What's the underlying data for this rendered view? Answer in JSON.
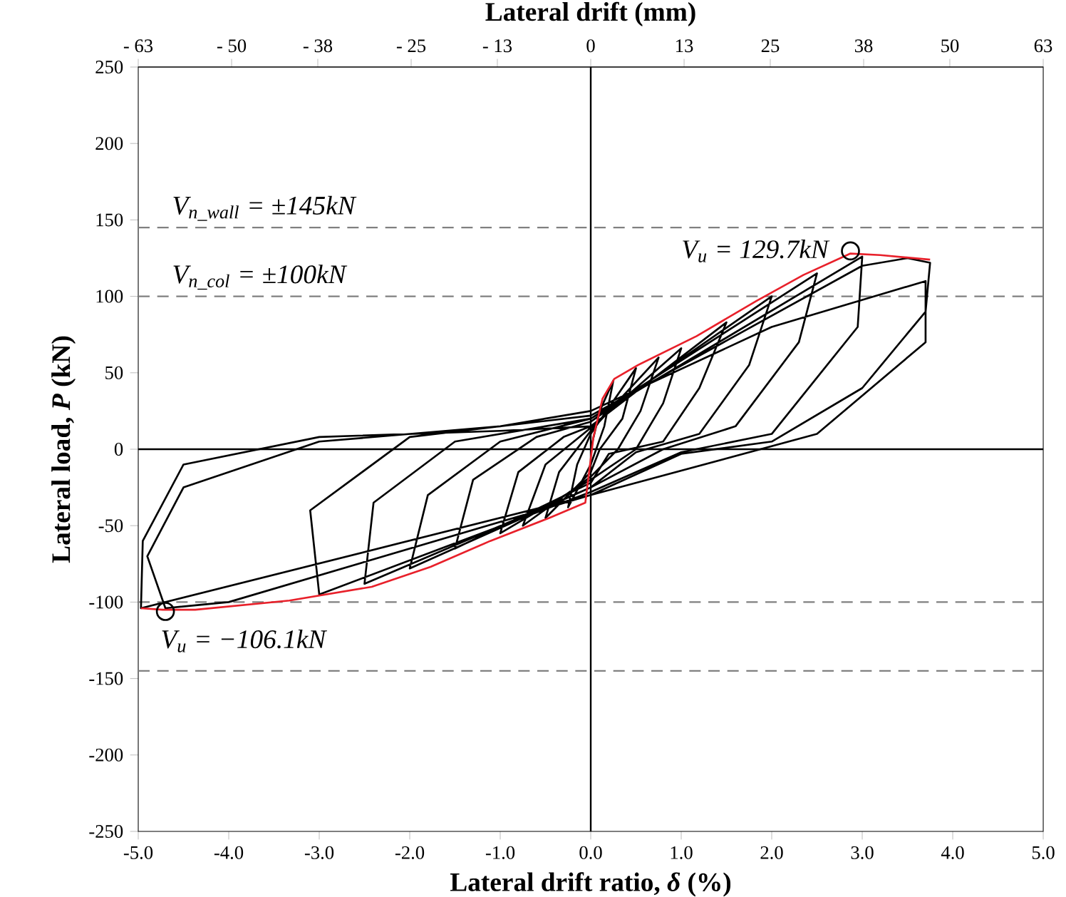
{
  "chart_data": {
    "type": "line",
    "xlabel": "Lateral drift ratio, *δ* (%)",
    "ylabel": "Lateral load, *P* (kN)",
    "x2label": "Lateral drift (mm)",
    "xlim": [
      -5,
      5
    ],
    "xticks": [
      {
        "value": -5,
        "label": "-5.0"
      },
      {
        "value": -4,
        "label": "-4.0"
      },
      {
        "value": -3,
        "label": "-3.0"
      },
      {
        "value": -2,
        "label": "-2.0"
      },
      {
        "value": -1,
        "label": "-1.0"
      },
      {
        "value": 0,
        "label": "0.0"
      },
      {
        "value": 1,
        "label": "1.0"
      },
      {
        "value": 2,
        "label": "2.0"
      },
      {
        "value": 3,
        "label": "3.0"
      },
      {
        "value": 4,
        "label": "4.0"
      },
      {
        "value": 5,
        "label": "5.0"
      }
    ],
    "x2lim": [
      -63,
      63
    ],
    "x2ticks": [
      {
        "value": -63,
        "label": "- 63"
      },
      {
        "value": -50,
        "label": "- 50"
      },
      {
        "value": -38,
        "label": "- 38"
      },
      {
        "value": -25,
        "label": "- 25"
      },
      {
        "value": -13,
        "label": "- 13"
      },
      0,
      13,
      25,
      38,
      50,
      63
    ],
    "ylim": [
      -250,
      250
    ],
    "yticks": [
      -250,
      -200,
      -150,
      -100,
      -50,
      0,
      50,
      100,
      150,
      200,
      250
    ],
    "ref_lines": [
      {
        "axis": "y",
        "value": 145,
        "label": "V$_{n_wall}$ = ±145kN",
        "color": "#808080",
        "line_style": "dashed"
      },
      {
        "axis": "y",
        "value": 100,
        "label": "V$_{n_col}$ = ±100kN",
        "color": "#808080",
        "line_style": "dashed"
      },
      {
        "axis": "y",
        "value": -100,
        "color": "#808080",
        "line_style": "dashed"
      },
      {
        "axis": "y",
        "value": -145,
        "color": "#808080",
        "line_style": "dashed"
      },
      {
        "axis": "y",
        "value": 0,
        "color": "#000000",
        "line_style": "solid"
      },
      {
        "axis": "x",
        "value": 0,
        "color": "#000000",
        "line_style": "solid"
      }
    ],
    "annotations": [
      {
        "text": "V$_{u}$ = 129.7kN",
        "x": 2.87,
        "y": 129.7
      },
      {
        "text": "V$_{u}$ = −106.1kN",
        "x": -4.7,
        "y": -106.1
      }
    ],
    "series": [
      {
        "color": "#000000",
        "line_style": "solid",
        "x": [
          0,
          0.1,
          0.25,
          0.15,
          0,
          -0.25,
          -0.15,
          0,
          0.5,
          0.35,
          0.1,
          0,
          -0.5,
          -0.35,
          0,
          0.75,
          0.55,
          0.3,
          0,
          -0.75,
          -0.5,
          0,
          1.0,
          0.8,
          0.5,
          0,
          -1.0,
          -0.8,
          -0.3,
          0,
          1.5,
          1.2,
          0.8,
          0.2,
          0,
          -1.5,
          -1.3,
          -0.6,
          0,
          2.0,
          1.75,
          1.2,
          0.5,
          0,
          -2.0,
          -1.8,
          -1.0,
          0,
          2.5,
          2.3,
          1.6,
          0.8,
          0,
          -2.5,
          -2.4,
          -1.5,
          0,
          3.0,
          2.95,
          2.0,
          1.0,
          0,
          -3.0,
          -3.1,
          -2.0,
          0,
          3.0,
          3.5,
          3.75,
          3.7,
          3.0,
          2.0,
          1.0,
          0,
          -4.0,
          -4.7,
          -4.9,
          -4.5,
          -3,
          -1,
          0,
          2,
          3.7,
          3.7,
          2.5,
          0,
          -4.97,
          -4.95,
          -4.5,
          -3,
          -1.0,
          0
        ],
        "values": [
          0,
          25,
          45,
          15,
          -10,
          -38,
          -10,
          10,
          53,
          20,
          0,
          -15,
          -45,
          -15,
          12,
          60,
          25,
          0,
          -18,
          -50,
          -10,
          14,
          66,
          30,
          0,
          -20,
          -55,
          -15,
          8,
          15,
          83,
          40,
          5,
          -3,
          -22,
          -65,
          -20,
          8,
          18,
          100,
          55,
          10,
          -2,
          -25,
          -78,
          -30,
          5,
          20,
          115,
          70,
          15,
          0,
          -25,
          -88,
          -35,
          5,
          20,
          126,
          80,
          10,
          -2,
          -28,
          -95,
          -40,
          8,
          22,
          120,
          125,
          122,
          90,
          40,
          5,
          -3,
          -30,
          -100,
          -104,
          -70,
          -25,
          5,
          15,
          25,
          80,
          110,
          70,
          10,
          -30,
          -104,
          -60,
          -10,
          8,
          12,
          15
        ]
      },
      {
        "color": "#e8202a",
        "line_style": "solid",
        "x": [
          -4.97,
          -4.73,
          -4.37,
          -3.33,
          -2.42,
          -1.77,
          -1.11,
          -0.46,
          -0.06,
          0.03,
          0.13,
          0.26,
          0.52,
          1.17,
          1.83,
          2.35,
          2.87,
          3.2,
          3.75
        ],
        "values": [
          -104,
          -105,
          -105,
          -99,
          -90,
          -77,
          -60,
          -45,
          -35,
          8,
          33,
          46,
          55,
          74,
          97,
          114,
          128,
          127,
          124
        ]
      },
      {
        "type": "scatter",
        "color": "#000000",
        "marker": "circle",
        "x": [
          2.87,
          -4.7
        ],
        "values": [
          129.7,
          -106.1
        ]
      }
    ]
  }
}
